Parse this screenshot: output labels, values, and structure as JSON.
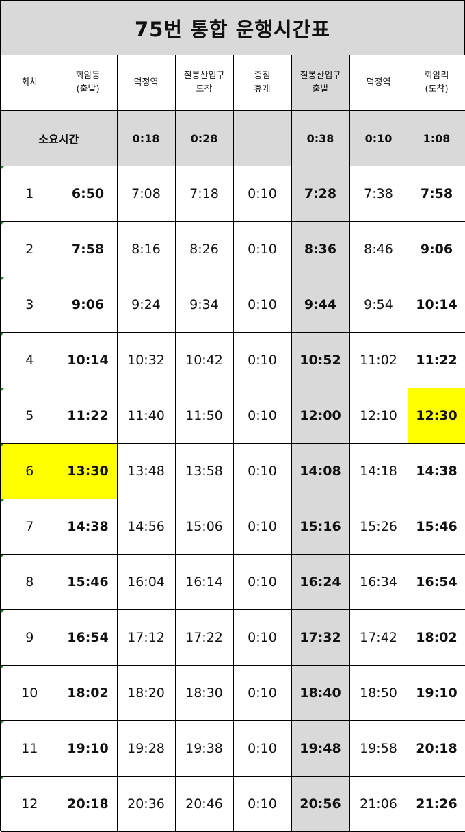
{
  "title": "75번 통합 운행시간표",
  "headers": [
    [
      "회차"
    ],
    [
      "회암동",
      "(출발)"
    ],
    [
      "덕정역"
    ],
    [
      "칠봉산입구",
      "도착"
    ],
    [
      "종점",
      "휴게"
    ],
    [
      "칠봉산입구",
      "출발"
    ],
    [
      "덕정역"
    ],
    [
      "회암리",
      "(도착)"
    ]
  ],
  "duration": {
    "label": "소요시간",
    "values": [
      "0:18",
      "0:28",
      "",
      "0:38",
      "0:10",
      "1:08"
    ]
  },
  "rows": [
    [
      "1",
      "6:50",
      "7:08",
      "7:18",
      "0:10",
      "7:28",
      "7:38",
      "7:58"
    ],
    [
      "2",
      "7:58",
      "8:16",
      "8:26",
      "0:10",
      "8:36",
      "8:46",
      "9:06"
    ],
    [
      "3",
      "9:06",
      "9:24",
      "9:34",
      "0:10",
      "9:44",
      "9:54",
      "10:14"
    ],
    [
      "4",
      "10:14",
      "10:32",
      "10:42",
      "0:10",
      "10:52",
      "11:02",
      "11:22"
    ],
    [
      "5",
      "11:22",
      "11:40",
      "11:50",
      "0:10",
      "12:00",
      "12:10",
      "12:30"
    ],
    [
      "6",
      "13:30",
      "13:48",
      "13:58",
      "0:10",
      "14:08",
      "14:18",
      "14:38"
    ],
    [
      "7",
      "14:38",
      "14:56",
      "15:06",
      "0:10",
      "15:16",
      "15:26",
      "15:46"
    ],
    [
      "8",
      "15:46",
      "16:04",
      "16:14",
      "0:10",
      "16:24",
      "16:34",
      "16:54"
    ],
    [
      "9",
      "16:54",
      "17:12",
      "17:22",
      "0:10",
      "17:32",
      "17:42",
      "18:02"
    ],
    [
      "10",
      "18:02",
      "18:20",
      "18:30",
      "0:10",
      "18:40",
      "18:50",
      "19:10"
    ],
    [
      "11",
      "19:10",
      "19:28",
      "19:38",
      "0:10",
      "19:48",
      "19:58",
      "20:18"
    ],
    [
      "12",
      "20:18",
      "20:36",
      "20:46",
      "0:10",
      "20:56",
      "21:06",
      "21:26"
    ]
  ],
  "highlights": [
    {
      "row": 5,
      "col": 7,
      "color": "#ffff00"
    },
    {
      "row": 6,
      "col": 0,
      "color": "#ffff00"
    },
    {
      "row": 6,
      "col": 1,
      "color": "#ffff00"
    }
  ],
  "colors": {
    "header_gray": "#d9d9d9",
    "highlight_yellow": "#ffff00"
  }
}
